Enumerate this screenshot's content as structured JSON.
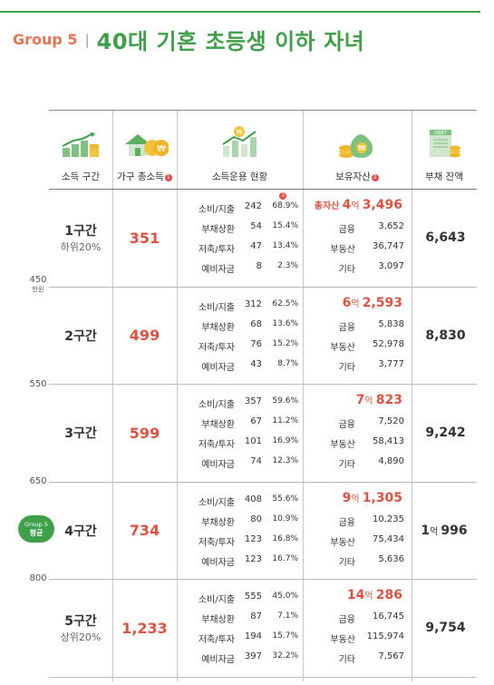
{
  "title": {
    "group": "Group 5",
    "separator": "|",
    "main": "40대 기혼 초등생 이하 자녀"
  },
  "headers": {
    "tier": "소득 구간",
    "income": "가구 총소득",
    "usage": "소득운용 현황",
    "assets": "보유자산",
    "debt": "부채 잔액",
    "badge1": "1",
    "badge2": "2",
    "badge3": "3"
  },
  "scale": [
    {
      "value": "450",
      "unit": "만원"
    },
    {
      "value": "550",
      "unit": ""
    },
    {
      "value": "650",
      "unit": ""
    },
    {
      "value": "800",
      "unit": ""
    }
  ],
  "avg_badge": {
    "line1": "Group 5",
    "line2": "평균"
  },
  "rows": [
    {
      "tier": "1구간",
      "sub": "하위20%",
      "income": "351",
      "usage": [
        {
          "label": "소비/지출",
          "value": "242",
          "pct": "68.9%"
        },
        {
          "label": "부채상환",
          "value": "54",
          "pct": "15.4%"
        },
        {
          "label": "저축/투자",
          "value": "47",
          "pct": "13.4%"
        },
        {
          "label": "예비자금",
          "value": "8",
          "pct": "2.3%"
        }
      ],
      "total_label": "총자산",
      "total_eok": "4",
      "total_eok_unit": "억",
      "total_rest": "3,496",
      "assets": [
        {
          "label": "금융",
          "value": "3,652"
        },
        {
          "label": "부동산",
          "value": "36,747"
        },
        {
          "label": "기타",
          "value": "3,097"
        }
      ],
      "debt": "6,643",
      "debt_eok": "",
      "debt_eok_unit": ""
    },
    {
      "tier": "2구간",
      "sub": "",
      "income": "499",
      "usage": [
        {
          "label": "소비/지출",
          "value": "312",
          "pct": "62.5%"
        },
        {
          "label": "부채상환",
          "value": "68",
          "pct": "13.6%"
        },
        {
          "label": "저축/투자",
          "value": "76",
          "pct": "15.2%"
        },
        {
          "label": "예비자금",
          "value": "43",
          "pct": "8.7%"
        }
      ],
      "total_label": "",
      "total_eok": "6",
      "total_eok_unit": "억",
      "total_rest": "2,593",
      "assets": [
        {
          "label": "금융",
          "value": "5,838"
        },
        {
          "label": "부동산",
          "value": "52,978"
        },
        {
          "label": "기타",
          "value": "3,777"
        }
      ],
      "debt": "8,830",
      "debt_eok": "",
      "debt_eok_unit": ""
    },
    {
      "tier": "3구간",
      "sub": "",
      "income": "599",
      "usage": [
        {
          "label": "소비/지출",
          "value": "357",
          "pct": "59.6%"
        },
        {
          "label": "부채상환",
          "value": "67",
          "pct": "11.2%"
        },
        {
          "label": "저축/투자",
          "value": "101",
          "pct": "16.9%"
        },
        {
          "label": "예비자금",
          "value": "74",
          "pct": "12.3%"
        }
      ],
      "total_label": "",
      "total_eok": "7",
      "total_eok_unit": "억",
      "total_rest": "823",
      "assets": [
        {
          "label": "금융",
          "value": "7,520"
        },
        {
          "label": "부동산",
          "value": "58,413"
        },
        {
          "label": "기타",
          "value": "4,890"
        }
      ],
      "debt": "9,242",
      "debt_eok": "",
      "debt_eok_unit": ""
    },
    {
      "tier": "4구간",
      "sub": "",
      "income": "734",
      "usage": [
        {
          "label": "소비/지출",
          "value": "408",
          "pct": "55.6%"
        },
        {
          "label": "부채상환",
          "value": "80",
          "pct": "10.9%"
        },
        {
          "label": "저축/투자",
          "value": "123",
          "pct": "16.8%"
        },
        {
          "label": "예비자금",
          "value": "123",
          "pct": "16.7%"
        }
      ],
      "total_label": "",
      "total_eok": "9",
      "total_eok_unit": "억",
      "total_rest": "1,305",
      "assets": [
        {
          "label": "금융",
          "value": "10,235"
        },
        {
          "label": "부동산",
          "value": "75,434"
        },
        {
          "label": "기타",
          "value": "5,636"
        }
      ],
      "debt": "996",
      "debt_eok": "1",
      "debt_eok_unit": "억"
    },
    {
      "tier": "5구간",
      "sub": "상위20%",
      "income": "1,233",
      "usage": [
        {
          "label": "소비/지출",
          "value": "555",
          "pct": "45.0%"
        },
        {
          "label": "부채상환",
          "value": "87",
          "pct": "7.1%"
        },
        {
          "label": "저축/투자",
          "value": "194",
          "pct": "15.7%"
        },
        {
          "label": "예비자금",
          "value": "397",
          "pct": "32.2%"
        }
      ],
      "total_label": "",
      "total_eok": "14",
      "total_eok_unit": "억",
      "total_rest": "286",
      "assets": [
        {
          "label": "금융",
          "value": "16,745"
        },
        {
          "label": "부동산",
          "value": "115,974"
        },
        {
          "label": "기타",
          "value": "7,567"
        }
      ],
      "debt": "9,754",
      "debt_eok": "",
      "debt_eok_unit": ""
    }
  ]
}
